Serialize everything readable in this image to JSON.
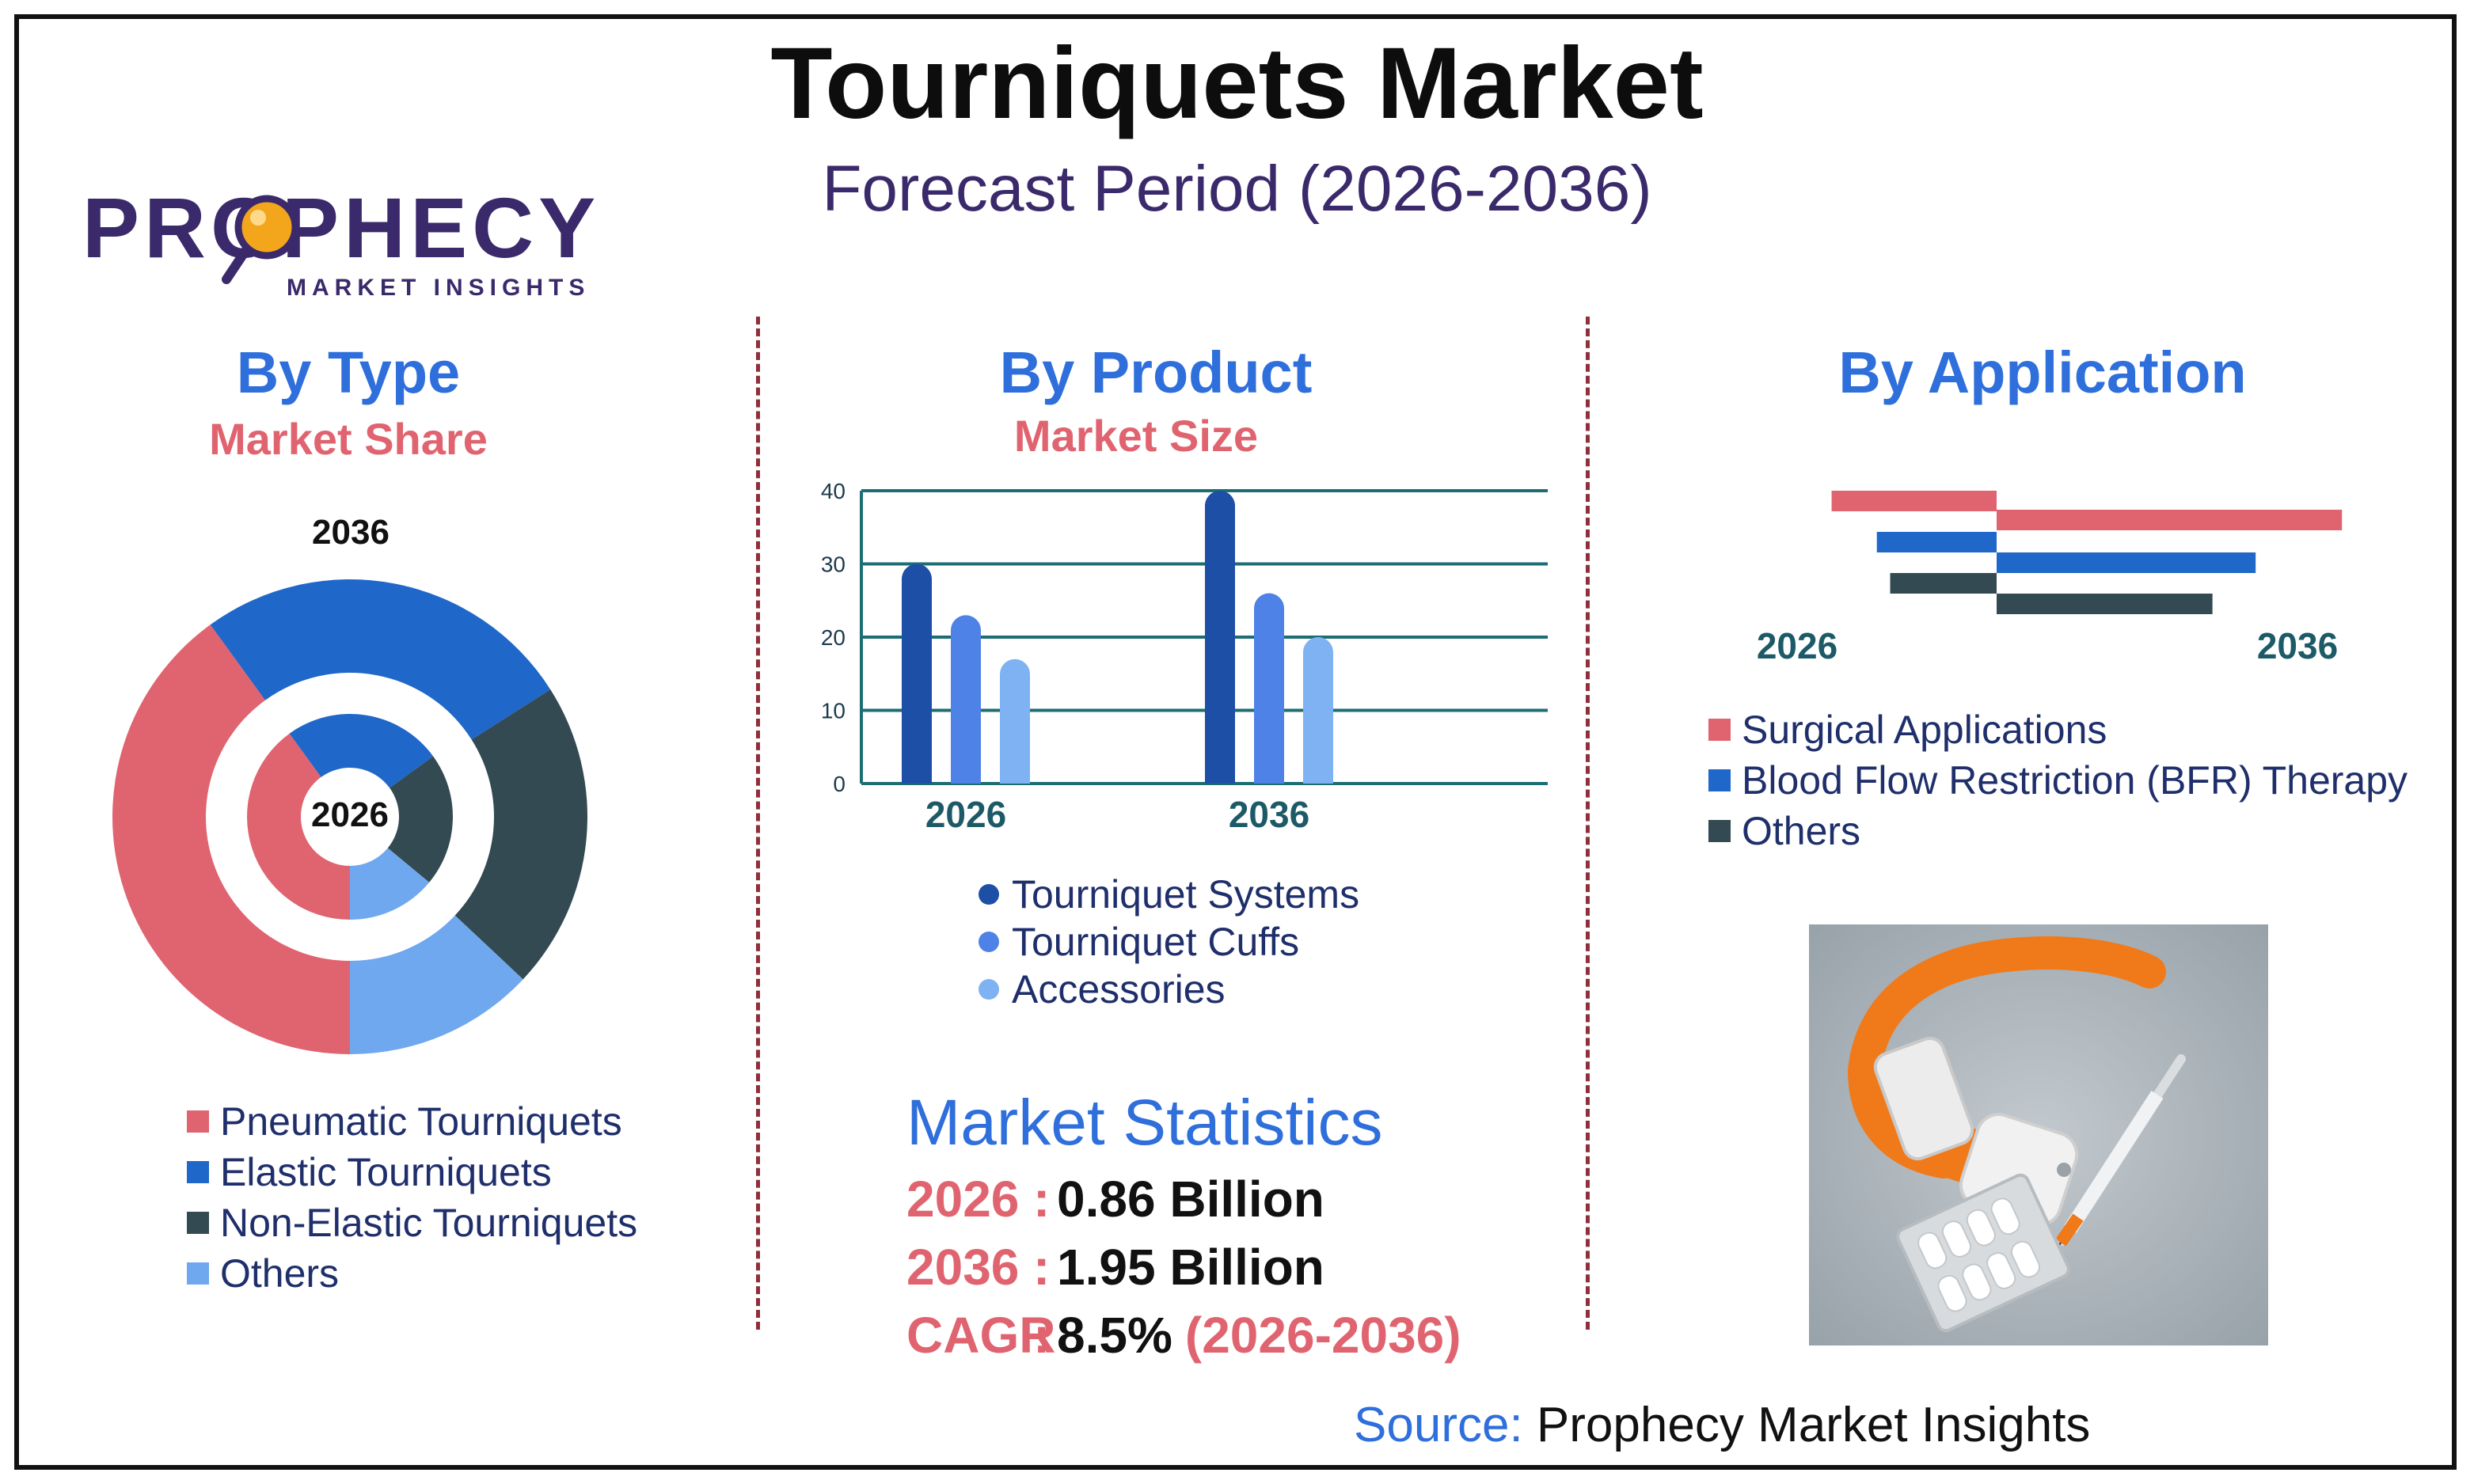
{
  "header": {
    "title": "Tourniquets Market",
    "subtitle": "Forecast Period (2026-2036)"
  },
  "logo": {
    "name": "PROPHECY",
    "tagline": "MARKET INSIGHTS"
  },
  "colors": {
    "pink": "#e06470",
    "blue": "#1f67c9",
    "slate": "#334a52",
    "light_blue": "#6fa8ef",
    "navy_bar": "#1d4fa6",
    "mid_bar": "#4f82e6",
    "light_bar": "#7fb2f2",
    "accent_title": "#2f6fdc",
    "subtitle": "#3b2a6b"
  },
  "by_type": {
    "title": "By Type",
    "subtitle": "Market Share",
    "outer_label": "2036",
    "inner_label": "2026",
    "legend": [
      "Pneumatic Tourniquets",
      "Elastic Tourniquets",
      "Non-Elastic Tourniquets",
      "Others"
    ]
  },
  "by_product": {
    "title": "By Product",
    "subtitle": "Market Size",
    "legend": [
      "Tourniquet Systems",
      "Tourniquet Cuffs",
      "Accessories"
    ]
  },
  "by_application": {
    "title": "By Application",
    "left_label": "2026",
    "right_label": "2036",
    "legend": [
      "Surgical Applications",
      "Blood Flow Restriction (BFR) Therapy",
      "Others"
    ]
  },
  "market_statistics": {
    "title": "Market Statistics",
    "rows": [
      {
        "label": "2026",
        "sep": ":",
        "value": "0.86 Billion",
        "extra": ""
      },
      {
        "label": "2036",
        "sep": ":",
        "value": "1.95 Billion",
        "extra": ""
      },
      {
        "label": "CAGR",
        "sep": ":",
        "value": "8.5%",
        "extra": "(2026-2036)"
      }
    ]
  },
  "source": {
    "label": "Source:",
    "text": "Prophecy Market Insights"
  },
  "image": {
    "icon": "tourniquet-photo"
  },
  "chart_data": [
    {
      "type": "pie",
      "name": "By Type",
      "rings": [
        {
          "label": "2036",
          "categories": [
            "Pneumatic Tourniquets",
            "Elastic Tourniquets",
            "Non-Elastic Tourniquets",
            "Others"
          ],
          "values": [
            40,
            26,
            21,
            13
          ]
        },
        {
          "label": "2026",
          "categories": [
            "Pneumatic Tourniquets",
            "Elastic Tourniquets",
            "Non-Elastic Tourniquets",
            "Others"
          ],
          "values": [
            40,
            25,
            21,
            14
          ]
        }
      ],
      "colors": [
        "#e06470",
        "#1f67c9",
        "#334a52",
        "#6fa8ef"
      ]
    },
    {
      "type": "bar",
      "name": "By Product",
      "categories": [
        "2026",
        "2036"
      ],
      "series": [
        {
          "name": "Tourniquet Systems",
          "values": [
            30,
            40
          ]
        },
        {
          "name": "Tourniquet Cuffs",
          "values": [
            23,
            26
          ]
        },
        {
          "name": "Accessories",
          "values": [
            17,
            20
          ]
        }
      ],
      "yticks": [
        0,
        10,
        20,
        30,
        40
      ],
      "ylim": [
        0,
        40
      ],
      "grid": true,
      "colors": [
        "#1d4fa6",
        "#4f82e6",
        "#7fb2f2"
      ]
    },
    {
      "type": "bar",
      "orientation": "horizontal-diverging",
      "name": "By Application",
      "categories": [
        "Surgical Applications",
        "Blood Flow Restriction (BFR) Therapy",
        "Others"
      ],
      "series": [
        {
          "name": "2026",
          "values": [
            62,
            45,
            40
          ]
        },
        {
          "name": "2036",
          "values": [
            80,
            60,
            50
          ]
        }
      ],
      "colors": [
        "#e06470",
        "#1f67c9",
        "#334a52"
      ]
    }
  ]
}
